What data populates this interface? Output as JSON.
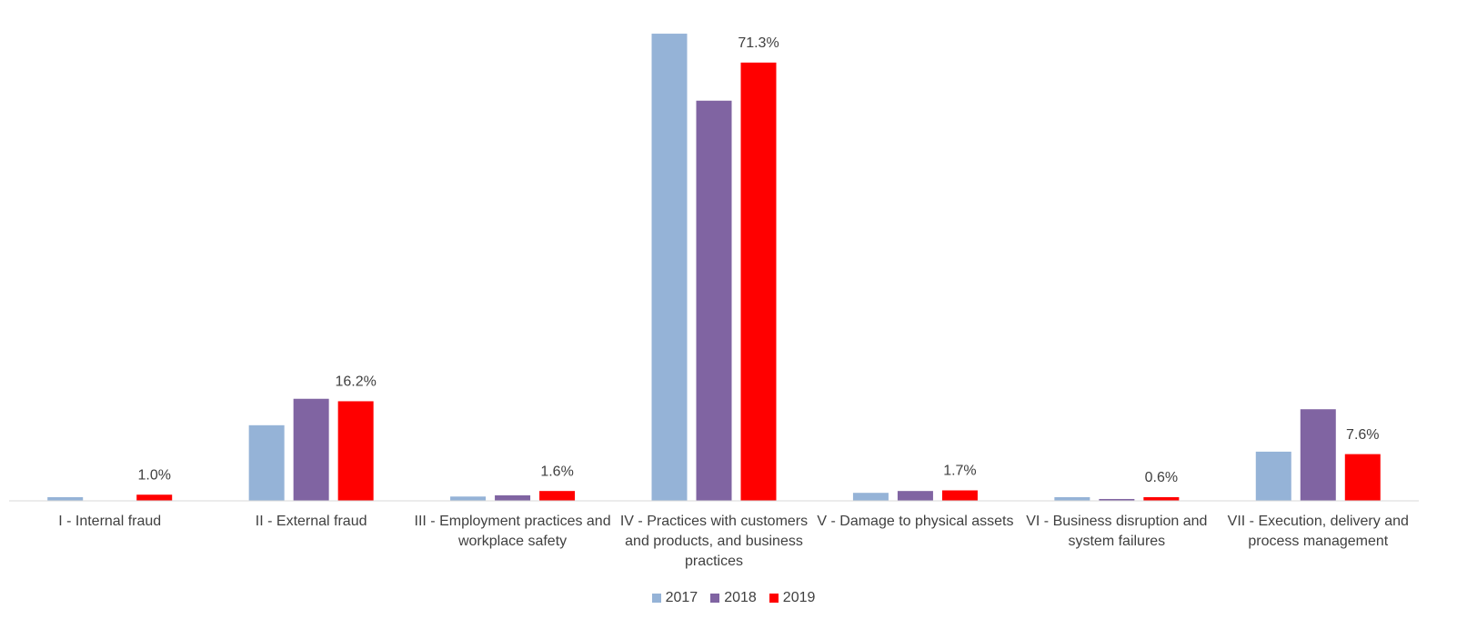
{
  "chart_data": {
    "type": "bar",
    "categories": [
      "I - Internal fraud",
      "II - External fraud",
      "III - Employment practices and workplace safety",
      "IV - Practices with customers and products, and business practices",
      "V - Damage to physical assets",
      "VI - Business disruption and system failures",
      "VII - Execution, delivery and process management"
    ],
    "series": [
      {
        "name": "2017",
        "color": "#95b3d7",
        "values": [
          0.6,
          12.3,
          0.7,
          76.0,
          1.3,
          0.6,
          8.0
        ]
      },
      {
        "name": "2018",
        "color": "#8064a2",
        "values": [
          0,
          16.6,
          0.9,
          65.1,
          1.6,
          0.3,
          14.9
        ]
      },
      {
        "name": "2019",
        "color": "#ff0000",
        "values": [
          1.0,
          16.2,
          1.6,
          71.3,
          1.7,
          0.6,
          7.6
        ],
        "value_labels": [
          "1.0%",
          "16.2%",
          "1.6%",
          "71.3%",
          "1.7%",
          "0.6%",
          "7.6%"
        ]
      }
    ],
    "ylim": [
      0,
      80
    ],
    "legend": "bottom"
  }
}
